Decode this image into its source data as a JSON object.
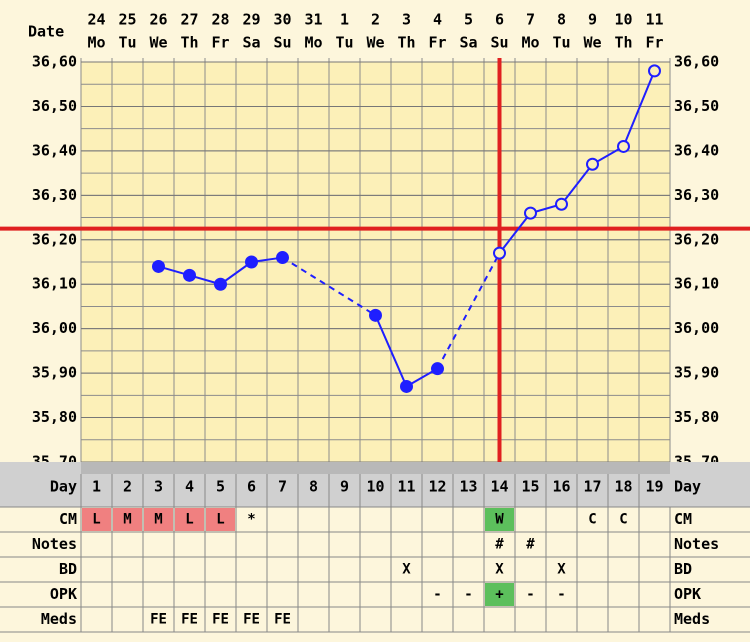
{
  "chart_data": {
    "type": "line",
    "date_label": "Date",
    "dates": [
      "24",
      "25",
      "26",
      "27",
      "28",
      "29",
      "30",
      "31",
      "1",
      "2",
      "3",
      "4",
      "5",
      "6",
      "7",
      "8",
      "9",
      "10",
      "11"
    ],
    "weekdays": [
      "Mo",
      "Tu",
      "We",
      "Th",
      "Fr",
      "Sa",
      "Su",
      "Mo",
      "Tu",
      "We",
      "Th",
      "Fr",
      "Sa",
      "Su",
      "Mo",
      "Tu",
      "We",
      "Th",
      "Fr"
    ],
    "cycle_days": [
      1,
      2,
      3,
      4,
      5,
      6,
      7,
      8,
      9,
      10,
      11,
      12,
      13,
      14,
      15,
      16,
      17,
      18,
      19
    ],
    "series": [
      {
        "color": "#1f1fff",
        "values": [
          null,
          null,
          36.14,
          36.12,
          36.1,
          36.15,
          36.16,
          null,
          null,
          36.03,
          35.87,
          35.91,
          null,
          36.17,
          36.26,
          36.28,
          36.37,
          36.41,
          36.58
        ]
      }
    ],
    "coverline": 36.225,
    "ovulation_day": 14,
    "line_color": "#e02020",
    "ylim": [
      35.7,
      36.6
    ],
    "yticks": [
      {
        "value": 35.7,
        "label": "35,70"
      },
      {
        "value": 35.8,
        "label": "35,80"
      },
      {
        "value": 35.9,
        "label": "35,90"
      },
      {
        "value": 36.0,
        "label": "36,00"
      },
      {
        "value": 36.1,
        "label": "36,10"
      },
      {
        "value": 36.2,
        "label": "36,20"
      },
      {
        "value": 36.3,
        "label": "36,30"
      },
      {
        "value": 36.4,
        "label": "36,40"
      },
      {
        "value": 36.5,
        "label": "36,50"
      },
      {
        "value": 36.6,
        "label": "36,60"
      }
    ],
    "grid_step": 0.05,
    "rows": [
      {
        "label": "Day"
      },
      {
        "label": "CM",
        "cells": [
          "L",
          "M",
          "M",
          "L",
          "L",
          "*",
          null,
          null,
          null,
          null,
          null,
          null,
          null,
          "W",
          null,
          null,
          "C",
          "C",
          null
        ],
        "colors": [
          "#f08080",
          "#f08080",
          "#f08080",
          "#f08080",
          "#f08080",
          null,
          null,
          null,
          null,
          null,
          null,
          null,
          null,
          "#5cbf5c",
          null,
          null,
          null,
          null,
          null
        ]
      },
      {
        "label": "Notes",
        "cells": [
          null,
          null,
          null,
          null,
          null,
          null,
          null,
          null,
          null,
          null,
          null,
          null,
          null,
          "#",
          "#",
          null,
          null,
          null,
          null
        ]
      },
      {
        "label": "BD",
        "cells": [
          null,
          null,
          null,
          null,
          null,
          null,
          null,
          null,
          null,
          null,
          "X",
          null,
          null,
          "X",
          null,
          "X",
          null,
          null,
          null
        ]
      },
      {
        "label": "OPK",
        "cells": [
          null,
          null,
          null,
          null,
          null,
          null,
          null,
          null,
          null,
          null,
          null,
          "-",
          "-",
          "+",
          "-",
          "-",
          null,
          null,
          null
        ],
        "colors": [
          null,
          null,
          null,
          null,
          null,
          null,
          null,
          null,
          null,
          null,
          null,
          null,
          null,
          "#5cbf5c",
          null,
          null,
          null,
          null,
          null
        ]
      },
      {
        "label": "Meds",
        "cells": [
          null,
          null,
          "FE",
          "FE",
          "FE",
          "FE",
          "FE",
          null,
          null,
          null,
          null,
          null,
          null,
          null,
          null,
          null,
          null,
          null,
          null
        ]
      }
    ]
  }
}
